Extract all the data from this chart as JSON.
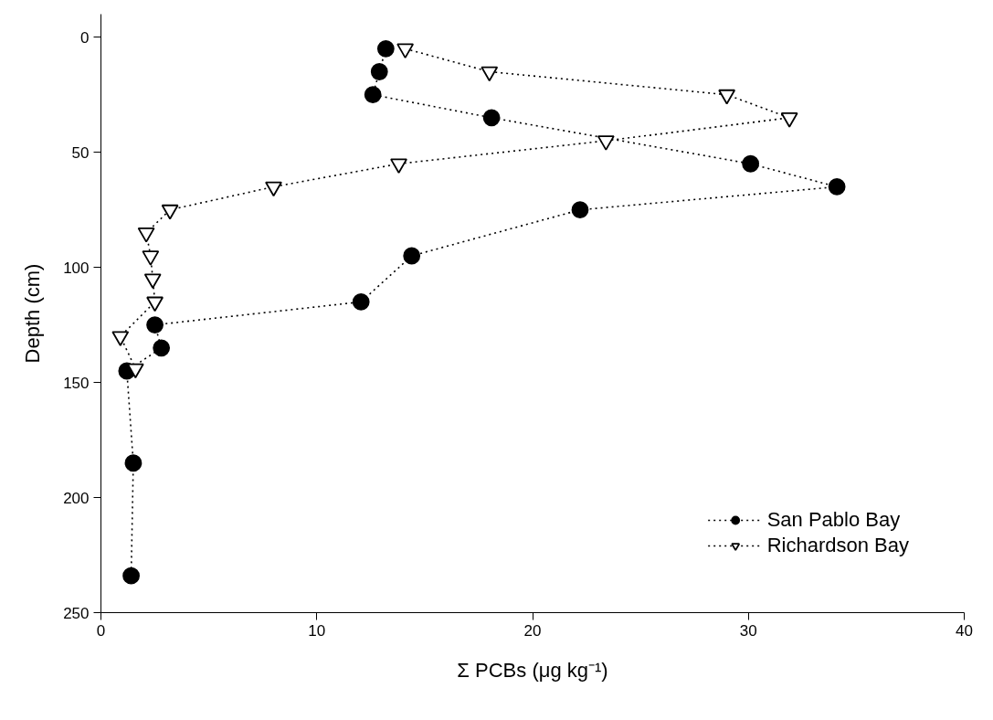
{
  "chart_data": {
    "type": "line",
    "xlabel": "Σ PCBs (μg kg⁻¹)",
    "ylabel": "Depth (cm)",
    "xlim": [
      0,
      40
    ],
    "xticks": [
      0,
      10,
      20,
      30,
      40
    ],
    "ylim": [
      250,
      -10
    ],
    "yticks": [
      0,
      50,
      100,
      150,
      200,
      250
    ],
    "grid": false,
    "legend": "bottom right",
    "line_style": "dotted",
    "series": [
      {
        "name": "San Pablo Bay",
        "color": "#000000",
        "marker": "circle",
        "x": [
          13.2,
          12.9,
          12.6,
          18.1,
          30.1,
          34.1,
          22.2,
          14.4,
          12.05,
          2.5,
          2.8,
          1.2,
          1.5,
          1.4
        ],
        "values": [
          5,
          15,
          25,
          35,
          55,
          65,
          75,
          95,
          115,
          125,
          135,
          145,
          185,
          234
        ]
      },
      {
        "name": "Richardson Bay",
        "color": "#000000",
        "marker": "triangle",
        "x": [
          14.1,
          18.0,
          29.0,
          31.9,
          23.4,
          13.8,
          8.0,
          3.2,
          2.1,
          2.3,
          2.4,
          2.5,
          0.9,
          1.6
        ],
        "values": [
          5,
          15,
          25,
          35,
          45,
          55,
          65,
          75,
          85,
          95,
          105,
          115,
          130,
          144
        ]
      }
    ]
  }
}
